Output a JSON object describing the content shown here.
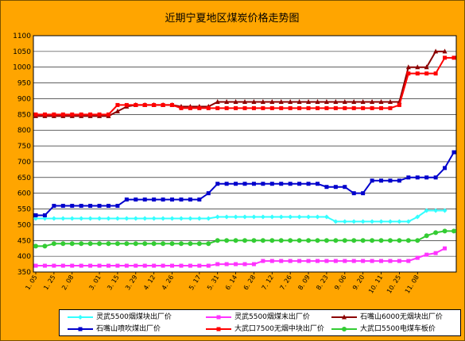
{
  "chart_data": {
    "type": "line",
    "title": "近期宁夏地区煤炭价格走势图",
    "xlabel": "",
    "ylabel": "",
    "ylim": [
      350,
      1100
    ],
    "yticks": [
      350,
      400,
      450,
      500,
      550,
      600,
      650,
      700,
      750,
      800,
      850,
      900,
      950,
      1000,
      1050,
      1100
    ],
    "grid": true,
    "legend_position": "bottom",
    "x_tick_labels": [
      {
        "i": 0,
        "label": "1. 05"
      },
      {
        "i": 2,
        "label": "1. 25"
      },
      {
        "i": 4,
        "label": "2. 08"
      },
      {
        "i": 7,
        "label": "3. 01"
      },
      {
        "i": 9,
        "label": "3. 15"
      },
      {
        "i": 11,
        "label": "3. 29"
      },
      {
        "i": 13,
        "label": "4. 12"
      },
      {
        "i": 15,
        "label": "4. 26"
      },
      {
        "i": 18,
        "label": "5. 17"
      },
      {
        "i": 20,
        "label": "5. 31"
      },
      {
        "i": 22,
        "label": "6. 14"
      },
      {
        "i": 24,
        "label": "6. 28"
      },
      {
        "i": 26,
        "label": "7. 12"
      },
      {
        "i": 28,
        "label": "7. 26"
      },
      {
        "i": 30,
        "label": "8. 09"
      },
      {
        "i": 32,
        "label": "8. 23"
      },
      {
        "i": 34,
        "label": "9. 06"
      },
      {
        "i": 36,
        "label": "9. 20"
      },
      {
        "i": 38,
        "label": "10. 11"
      },
      {
        "i": 40,
        "label": "10. 25"
      },
      {
        "i": 42,
        "label": "11. 08"
      }
    ],
    "series": [
      {
        "name": "灵武5500烟煤块出厂价",
        "color": "#33FFFF",
        "marker": "diamond",
        "values": [
          520,
          520,
          520,
          520,
          520,
          520,
          520,
          520,
          520,
          520,
          520,
          520,
          520,
          520,
          520,
          520,
          520,
          520,
          520,
          520,
          525,
          525,
          525,
          525,
          525,
          525,
          525,
          525,
          525,
          525,
          525,
          525,
          525,
          510,
          510,
          510,
          510,
          510,
          510,
          510,
          510,
          510,
          525,
          545,
          545,
          545
        ]
      },
      {
        "name": "灵武5500烟煤末出厂价",
        "color": "#FF33FF",
        "marker": "square",
        "values": [
          370,
          370,
          370,
          370,
          370,
          370,
          370,
          370,
          370,
          370,
          370,
          370,
          370,
          370,
          370,
          370,
          370,
          370,
          370,
          370,
          375,
          375,
          375,
          375,
          375,
          385,
          385,
          385,
          385,
          385,
          385,
          385,
          385,
          385,
          385,
          385,
          385,
          385,
          385,
          385,
          385,
          385,
          395,
          405,
          410,
          425
        ]
      },
      {
        "name": "石嘴山6000无烟块出厂价",
        "color": "#8B0000",
        "marker": "triangle",
        "values": [
          845,
          845,
          845,
          845,
          845,
          845,
          845,
          845,
          845,
          860,
          875,
          880,
          880,
          880,
          880,
          880,
          875,
          875,
          875,
          875,
          890,
          890,
          890,
          890,
          890,
          890,
          890,
          890,
          890,
          890,
          890,
          890,
          890,
          890,
          890,
          890,
          890,
          890,
          890,
          890,
          890,
          1000,
          1000,
          1000,
          1050,
          1050
        ]
      },
      {
        "name": "石嘴山喷吹煤出厂价",
        "color": "#0000CC",
        "marker": "square",
        "values": [
          530,
          530,
          560,
          560,
          560,
          560,
          560,
          560,
          560,
          560,
          580,
          580,
          580,
          580,
          580,
          580,
          580,
          580,
          580,
          600,
          630,
          630,
          630,
          630,
          630,
          630,
          630,
          630,
          630,
          630,
          630,
          630,
          620,
          620,
          620,
          600,
          600,
          640,
          640,
          640,
          640,
          650,
          650,
          650,
          650,
          680,
          730
        ]
      },
      {
        "name": "大武口7500无烟中块出厂价",
        "color": "#FF0000",
        "marker": "square",
        "values": [
          850,
          850,
          850,
          850,
          850,
          850,
          850,
          850,
          850,
          880,
          880,
          880,
          880,
          880,
          880,
          880,
          870,
          870,
          870,
          870,
          870,
          870,
          870,
          870,
          870,
          870,
          870,
          870,
          870,
          870,
          870,
          870,
          870,
          870,
          870,
          870,
          870,
          870,
          870,
          870,
          880,
          980,
          980,
          980,
          980,
          1030,
          1030
        ]
      },
      {
        "name": "大武口5500电煤车板价",
        "color": "#33CC33",
        "marker": "circle",
        "values": [
          432,
          432,
          440,
          440,
          440,
          440,
          440,
          440,
          440,
          440,
          440,
          440,
          440,
          440,
          440,
          440,
          440,
          440,
          440,
          440,
          450,
          450,
          450,
          450,
          450,
          450,
          450,
          450,
          450,
          450,
          450,
          450,
          450,
          450,
          450,
          450,
          450,
          450,
          450,
          450,
          450,
          450,
          450,
          465,
          475,
          480,
          480
        ]
      }
    ]
  },
  "colors": {
    "background": "#FFA500",
    "plot_area": "#FFFFFF",
    "grid": "#000000"
  }
}
